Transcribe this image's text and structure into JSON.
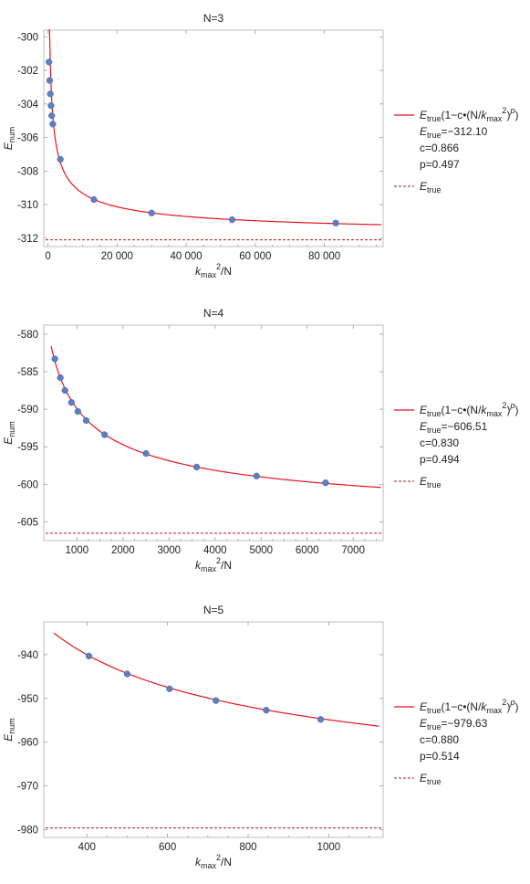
{
  "chart_data": [
    {
      "type": "scatter",
      "title": "N=3",
      "xlabel": {
        "base": "k",
        "sub": "max",
        "sup": "2",
        "tail": "/N"
      },
      "ylabel": {
        "base": "E",
        "sub": "num"
      },
      "xlim": [
        -1200,
        97000
      ],
      "ylim": [
        -312.5,
        -299.6
      ],
      "xticks": [
        0,
        20000,
        40000,
        60000,
        80000
      ],
      "xtick_labels": [
        "0",
        "20 000",
        "40 000",
        "60 000",
        "80 000"
      ],
      "yticks": [
        -312,
        -310,
        -308,
        -306,
        -304,
        -302,
        -300
      ],
      "ytick_labels": [
        "-312",
        "-310",
        "-308",
        "-306",
        "-304",
        "-302",
        "-300"
      ],
      "series": [
        {
          "x": [
            300,
            500,
            700,
            900,
            1100,
            1400,
            3600,
            13300,
            30000,
            53300,
            83300
          ],
          "y": [
            -301.5,
            -302.6,
            -303.4,
            -304.1,
            -304.7,
            -305.2,
            -307.3,
            -309.7,
            -310.5,
            -310.9,
            -311.1
          ]
        }
      ],
      "fit": {
        "E_true": -312.1,
        "c": 0.866,
        "p": 0.497,
        "x_start": 150,
        "x_end": 96500
      },
      "legend": {
        "fit_label": {
          "a": "E",
          "a_sub": "true",
          "b": "(1−c•(N/",
          "c": "k",
          "c_sub": "max",
          "c_sup": "2",
          "d": ")",
          "d_sup": "p",
          "d_sup_italic": true,
          "e": ")"
        },
        "params": [
          {
            "label": "E",
            "sub": "true",
            "value": "=−312.10"
          },
          {
            "label": "c=0.866"
          },
          {
            "label": "p=0.497"
          }
        ],
        "ref_label": {
          "base": "E",
          "sub": "true"
        }
      }
    },
    {
      "type": "scatter",
      "title": "N=4",
      "xlabel": {
        "base": "k",
        "sub": "max",
        "sup": "2",
        "tail": "/N"
      },
      "ylabel": {
        "base": "E",
        "sub": "num"
      },
      "xlim": [
        280,
        7650
      ],
      "ylim": [
        -607.5,
        -578.8
      ],
      "xticks": [
        1000,
        2000,
        3000,
        4000,
        5000,
        6000,
        7000
      ],
      "xtick_labels": [
        "1000",
        "2000",
        "3000",
        "4000",
        "5000",
        "6000",
        "7000"
      ],
      "yticks": [
        -605,
        -600,
        -595,
        -590,
        -585,
        -580
      ],
      "ytick_labels": [
        "-605",
        "-600",
        "-595",
        "-590",
        "-585",
        "-580"
      ],
      "series": [
        {
          "x": [
            520,
            640,
            740,
            880,
            1020,
            1200,
            1600,
            2500,
            3600,
            4900,
            6400
          ],
          "y": [
            -583.3,
            -585.8,
            -587.5,
            -589.1,
            -590.3,
            -591.5,
            -593.4,
            -595.9,
            -597.7,
            -598.9,
            -599.8
          ]
        }
      ],
      "fit": {
        "E_true": -606.51,
        "c": 0.83,
        "p": 0.494,
        "x_start": 440,
        "x_end": 7600
      },
      "legend": {
        "fit_label": {
          "a": "E",
          "a_sub": "true",
          "b": "(1−c•(N/",
          "c": "k",
          "c_sub": "max",
          "c_sup": "2",
          "d": ")",
          "d_sup": "p",
          "d_sup_italic": true,
          "e": ")"
        },
        "params": [
          {
            "label": "E",
            "sub": "true",
            "value": "=−606.51"
          },
          {
            "label": "c=0.830"
          },
          {
            "label": "p=0.494"
          }
        ],
        "ref_label": {
          "base": "E",
          "sub": "true"
        }
      }
    },
    {
      "type": "scatter",
      "title": "N=5",
      "xlabel": {
        "base": "k",
        "sub": "max",
        "sup": "2",
        "tail": "/N"
      },
      "ylabel": {
        "base": "E",
        "sub": "num"
      },
      "xlim": [
        293,
        1135
      ],
      "ylim": [
        -981.8,
        -932.5
      ],
      "xticks": [
        400,
        600,
        800,
        1000
      ],
      "xtick_labels": [
        "400",
        "600",
        "800",
        "1000"
      ],
      "yticks": [
        -980,
        -970,
        -960,
        -950,
        -940
      ],
      "ytick_labels": [
        "-980",
        "-970",
        "-960",
        "-950",
        "-940"
      ],
      "series": [
        {
          "x": [
            405,
            500,
            605,
            720,
            845,
            980
          ],
          "y": [
            -940.3,
            -944.4,
            -947.8,
            -950.5,
            -952.7,
            -954.8
          ]
        }
      ],
      "fit": {
        "E_true": -979.63,
        "c": 0.88,
        "p": 0.514,
        "x_start": 318,
        "x_end": 1125
      },
      "legend": {
        "fit_label": {
          "a": "E",
          "a_sub": "true",
          "b": "(1−c•(N/",
          "c": "k",
          "c_sub": "max",
          "c_sup": "2",
          "d": ")",
          "d_sup": "p",
          "d_sup_italic": true,
          "e": ")"
        },
        "params": [
          {
            "label": "E",
            "sub": "true",
            "value": "=−979.63"
          },
          {
            "label": "c=0.880"
          },
          {
            "label": "p=0.514"
          }
        ],
        "ref_label": {
          "base": "E",
          "sub": "true"
        }
      }
    }
  ],
  "colors": {
    "fit": "#e8141c",
    "reference": "#b8141c",
    "points": "#5b80c2",
    "frame": "#bfbfbf"
  }
}
